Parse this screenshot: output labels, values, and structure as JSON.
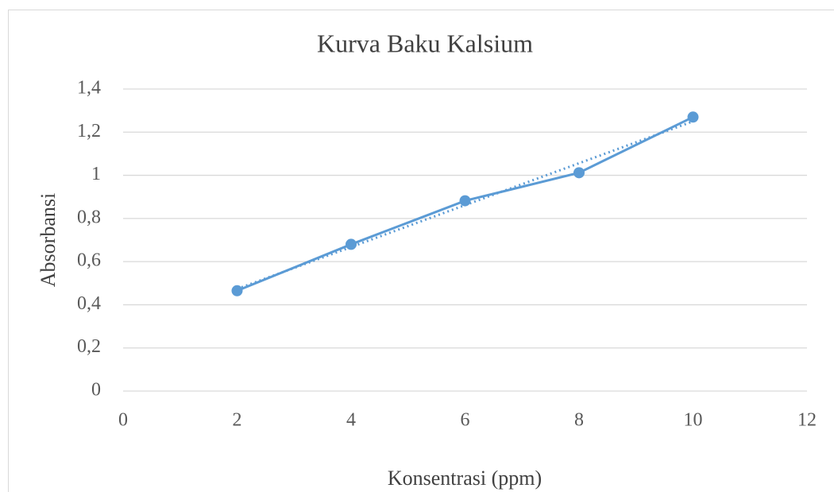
{
  "chart_data": {
    "type": "scatter-line",
    "title": "Kurva Baku Kalsium",
    "x_label": "Konsentrasi (ppm)",
    "y_label": "Absorbansi",
    "series": [
      {
        "name": "Absorbansi",
        "color": "#5b9bd5",
        "x": [
          2,
          4,
          6,
          8,
          10
        ],
        "values": [
          0.465,
          0.68,
          0.882,
          1.012,
          1.27
        ]
      }
    ],
    "trendline": "linear",
    "xlim": [
      0,
      12
    ],
    "xticks": [
      0,
      2,
      4,
      6,
      8,
      10,
      12
    ],
    "ylim": [
      0,
      1.4
    ],
    "yticks": [
      0,
      {
        "value": 0.2,
        "label": "0,2"
      },
      {
        "value": 0.4,
        "label": "0,4"
      },
      {
        "value": 0.6,
        "label": "0,6"
      },
      {
        "value": 0.8,
        "label": "0,8"
      },
      1,
      {
        "value": 1.2,
        "label": "1,2"
      },
      {
        "value": 1.4,
        "label": "1,4"
      }
    ],
    "grid": true
  }
}
